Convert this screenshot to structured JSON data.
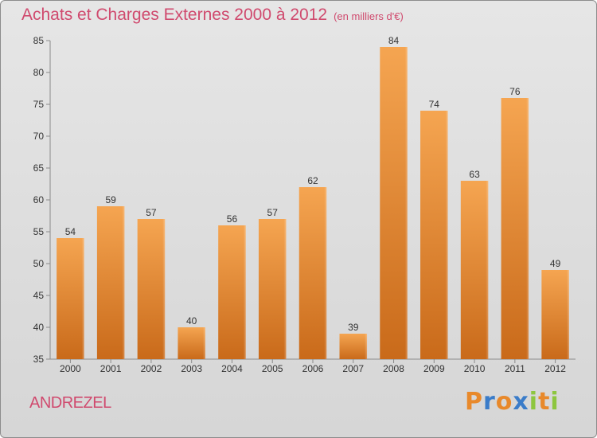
{
  "title": "Achats et Charges Externes 2000 à 2012",
  "unit_label": "(en milliers d'€)",
  "city": "ANDREZEL",
  "logo": {
    "letters": [
      "P",
      "r",
      "o",
      "x",
      "i",
      "t",
      "i"
    ],
    "colors": [
      "#e8892b",
      "#3a7cc9",
      "#e8892b",
      "#3a7cc9",
      "#8dc63f",
      "#e8892b",
      "#8dc63f"
    ]
  },
  "colors": {
    "bar_top": "#f5a551",
    "bar_bottom": "#c96a1a",
    "title": "#d04a6e"
  },
  "chart_data": {
    "type": "bar",
    "title": "Achats et Charges Externes 2000 à 2012",
    "xlabel": "",
    "ylabel": "",
    "categories": [
      "2000",
      "2001",
      "2002",
      "2003",
      "2004",
      "2005",
      "2006",
      "2007",
      "2008",
      "2009",
      "2010",
      "2011",
      "2012"
    ],
    "values": [
      54,
      59,
      57,
      40,
      56,
      57,
      62,
      39,
      84,
      74,
      63,
      76,
      49
    ],
    "ylim": [
      35,
      85
    ],
    "yticks": [
      35,
      40,
      45,
      50,
      55,
      60,
      65,
      70,
      75,
      80,
      85
    ],
    "grid": false,
    "data_labels": true
  }
}
